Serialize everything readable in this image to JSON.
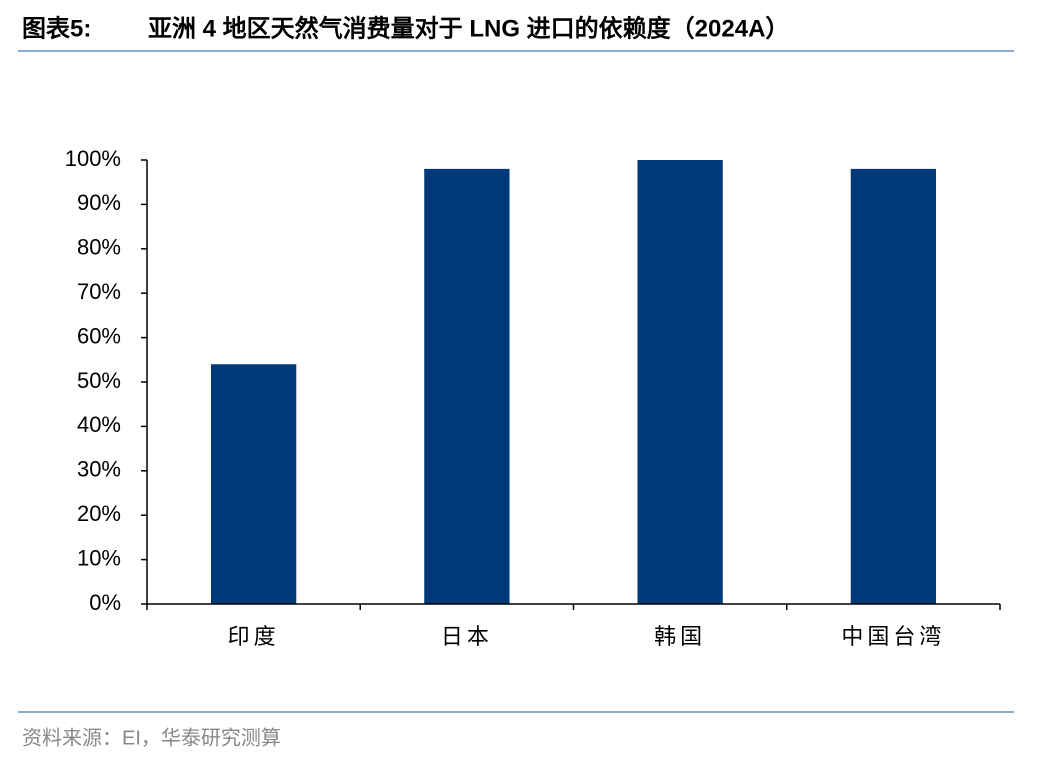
{
  "header": {
    "label": "图表5:",
    "title": "亚洲 4 地区天然气消费量对于 LNG 进口的依赖度（2024A）"
  },
  "chart_data": {
    "type": "bar",
    "categories": [
      "印度",
      "日本",
      "韩国",
      "中国台湾"
    ],
    "values": [
      54,
      98,
      100,
      98
    ],
    "color": "#003878",
    "ylim": [
      0,
      100
    ],
    "yticks": [
      {
        "value": 0,
        "label": "0%"
      },
      {
        "value": 10,
        "label": "10%"
      },
      {
        "value": 20,
        "label": "20%"
      },
      {
        "value": 30,
        "label": "30%"
      },
      {
        "value": 40,
        "label": "40%"
      },
      {
        "value": 50,
        "label": "50%"
      },
      {
        "value": 60,
        "label": "60%"
      },
      {
        "value": 70,
        "label": "70%"
      },
      {
        "value": 80,
        "label": "80%"
      },
      {
        "value": 90,
        "label": "90%"
      },
      {
        "value": 100,
        "label": "100%"
      }
    ],
    "grid": false
  },
  "footer": {
    "source": "资料来源：EI，华泰研究测算"
  }
}
